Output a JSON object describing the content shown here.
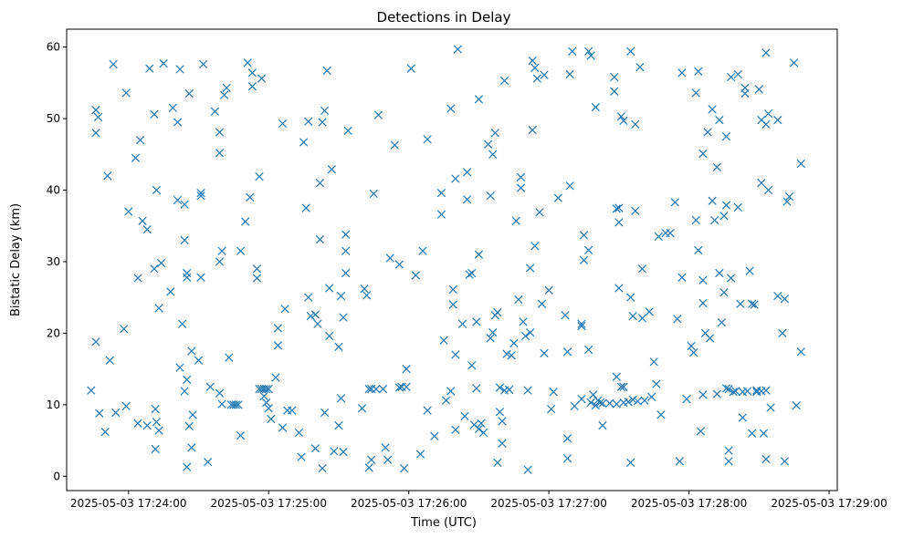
{
  "chart_data": {
    "type": "scatter",
    "title": "Detections in Delay",
    "xlabel": "Time (UTC)",
    "ylabel": "Bistatic Delay (km)",
    "marker": "x",
    "color": "#1f77b4",
    "x_unit": "seconds after 17:24:00",
    "xlim": [
      -26.5,
      303.5
    ],
    "ylim": [
      -2.0,
      62.5
    ],
    "xticks": [
      {
        "value": 0,
        "label": "2025-05-03 17:24:00"
      },
      {
        "value": 60,
        "label": "2025-05-03 17:25:00"
      },
      {
        "value": 120,
        "label": "2025-05-03 17:26:00"
      },
      {
        "value": 180,
        "label": "2025-05-03 17:27:00"
      },
      {
        "value": 240,
        "label": "2025-05-03 17:28:00"
      },
      {
        "value": 300,
        "label": "2025-05-03 17:29:00"
      }
    ],
    "yticks": [
      {
        "value": 0,
        "label": "0"
      },
      {
        "value": 10,
        "label": "10"
      },
      {
        "value": 20,
        "label": "20"
      },
      {
        "value": 30,
        "label": "30"
      },
      {
        "value": 40,
        "label": "40"
      },
      {
        "value": 50,
        "label": "50"
      },
      {
        "value": 60,
        "label": "60"
      }
    ],
    "points": [
      [
        -16,
        12
      ],
      [
        -14,
        51.2
      ],
      [
        -14,
        48
      ],
      [
        -13,
        50.2
      ],
      [
        -14,
        18.8
      ],
      [
        -12.5,
        8.8
      ],
      [
        -10,
        6.2
      ],
      [
        -9,
        42
      ],
      [
        -8,
        16.2
      ],
      [
        -6.5,
        57.6
      ],
      [
        -5.5,
        8.9
      ],
      [
        -2,
        20.6
      ],
      [
        -1,
        53.6
      ],
      [
        -1,
        9.8
      ],
      [
        0,
        37
      ],
      [
        3,
        44.5
      ],
      [
        4,
        27.7
      ],
      [
        4,
        7.4
      ],
      [
        5,
        47
      ],
      [
        6,
        35.7
      ],
      [
        8,
        34.5
      ],
      [
        8,
        7.1
      ],
      [
        9,
        57
      ],
      [
        11,
        50.6
      ],
      [
        11,
        29
      ],
      [
        11.5,
        9.4
      ],
      [
        11.5,
        3.8
      ],
      [
        12,
        40
      ],
      [
        12,
        7.6
      ],
      [
        13,
        6.4
      ],
      [
        13,
        23.5
      ],
      [
        14,
        29.8
      ],
      [
        15,
        57.7
      ],
      [
        18,
        25.8
      ],
      [
        19,
        51.5
      ],
      [
        21,
        49.5
      ],
      [
        21,
        38.6
      ],
      [
        22,
        56.9
      ],
      [
        22,
        15.2
      ],
      [
        23,
        21.3
      ],
      [
        24,
        33
      ],
      [
        24,
        38
      ],
      [
        24,
        11.9
      ],
      [
        25,
        13.5
      ],
      [
        25,
        28.4
      ],
      [
        25,
        27.8
      ],
      [
        25,
        1.3
      ],
      [
        26,
        53.5
      ],
      [
        26,
        7
      ],
      [
        27,
        17.5
      ],
      [
        27,
        4
      ],
      [
        27.5,
        8.6
      ],
      [
        30,
        16.2
      ],
      [
        31,
        39.6
      ],
      [
        31,
        39.2
      ],
      [
        31,
        27.8
      ],
      [
        32,
        57.6
      ],
      [
        34,
        2
      ],
      [
        35,
        12.5
      ],
      [
        37,
        51
      ],
      [
        39,
        48.1
      ],
      [
        39,
        45.2
      ],
      [
        39,
        30
      ],
      [
        39,
        11.6
      ],
      [
        40,
        31.5
      ],
      [
        40,
        10.1
      ],
      [
        41,
        53.3
      ],
      [
        42,
        54.3
      ],
      [
        43,
        16.6
      ],
      [
        44,
        10
      ],
      [
        45,
        10
      ],
      [
        46,
        10
      ],
      [
        47,
        10
      ],
      [
        48,
        5.7
      ],
      [
        48,
        31.5
      ],
      [
        50,
        35.6
      ],
      [
        51,
        57.8
      ],
      [
        52,
        39
      ],
      [
        53,
        56.4
      ],
      [
        53,
        54.5
      ],
      [
        55,
        29
      ],
      [
        55,
        27.7
      ],
      [
        56,
        41.9
      ],
      [
        56,
        12.2
      ],
      [
        57,
        12.2
      ],
      [
        58,
        12.2
      ],
      [
        59,
        12.2
      ],
      [
        60,
        12.2
      ],
      [
        57,
        55.6
      ],
      [
        58,
        11.2
      ],
      [
        59,
        10.3
      ],
      [
        60,
        9.5
      ],
      [
        61,
        8
      ],
      [
        63,
        13.8
      ],
      [
        64,
        20.7
      ],
      [
        64,
        18.3
      ],
      [
        66,
        49.3
      ],
      [
        66,
        6.8
      ],
      [
        67,
        23.4
      ],
      [
        68,
        9.2
      ],
      [
        70,
        9.2
      ],
      [
        73,
        6.1
      ],
      [
        74,
        2.7
      ],
      [
        75,
        46.7
      ],
      [
        76,
        37.5
      ],
      [
        77,
        49.6
      ],
      [
        77,
        25
      ],
      [
        78,
        22.4
      ],
      [
        80,
        22.6
      ],
      [
        80,
        3.9
      ],
      [
        81,
        21.3
      ],
      [
        82,
        41
      ],
      [
        82,
        33.1
      ],
      [
        83,
        49.5
      ],
      [
        83,
        1.1
      ],
      [
        84,
        51.1
      ],
      [
        84,
        8.9
      ],
      [
        85,
        56.7
      ],
      [
        86,
        26.3
      ],
      [
        86,
        19.6
      ],
      [
        87,
        42.9
      ],
      [
        88,
        3.5
      ],
      [
        90,
        18.1
      ],
      [
        90,
        7.1
      ],
      [
        91,
        25.2
      ],
      [
        91,
        10.9
      ],
      [
        92,
        22.2
      ],
      [
        92,
        3.4
      ],
      [
        93,
        33.8
      ],
      [
        93,
        31.5
      ],
      [
        93,
        28.4
      ],
      [
        94,
        48.3
      ],
      [
        100,
        9.5
      ],
      [
        101,
        26.2
      ],
      [
        102,
        25.3
      ],
      [
        103,
        12.2
      ],
      [
        103,
        1.2
      ],
      [
        104,
        2.3
      ],
      [
        104,
        12.2
      ],
      [
        105,
        39.5
      ],
      [
        106,
        12.2
      ],
      [
        107,
        50.5
      ],
      [
        109,
        12.2
      ],
      [
        110,
        4
      ],
      [
        111,
        2.3
      ],
      [
        112,
        30.5
      ],
      [
        114,
        46.3
      ],
      [
        116,
        12.4
      ],
      [
        116,
        29.6
      ],
      [
        117,
        12.5
      ],
      [
        118,
        1.1
      ],
      [
        119,
        12.5
      ],
      [
        119,
        15
      ],
      [
        121,
        57
      ],
      [
        123,
        28.1
      ],
      [
        125,
        3.1
      ],
      [
        126,
        31.5
      ],
      [
        128,
        47.1
      ],
      [
        128,
        9.2
      ],
      [
        131,
        5.6
      ],
      [
        134,
        39.6
      ],
      [
        134,
        36.6
      ],
      [
        135,
        19
      ],
      [
        136,
        10.6
      ],
      [
        138,
        11.9
      ],
      [
        138,
        51.4
      ],
      [
        139,
        26.1
      ],
      [
        139,
        24
      ],
      [
        140,
        41.6
      ],
      [
        140,
        6.5
      ],
      [
        140,
        17
      ],
      [
        141,
        59.7
      ],
      [
        143,
        21.3
      ],
      [
        144,
        8.4
      ],
      [
        145,
        42.5
      ],
      [
        145,
        38.7
      ],
      [
        146,
        28.2
      ],
      [
        147,
        15.5
      ],
      [
        147,
        28.4
      ],
      [
        148,
        7.2
      ],
      [
        149,
        12.3
      ],
      [
        149,
        21.6
      ],
      [
        150,
        6.6
      ],
      [
        150,
        31
      ],
      [
        150,
        52.7
      ],
      [
        151,
        7.4
      ],
      [
        152,
        6.1
      ],
      [
        154,
        46.4
      ],
      [
        155,
        39.2
      ],
      [
        155,
        19.3
      ],
      [
        156,
        20.1
      ],
      [
        156,
        45
      ],
      [
        157,
        48
      ],
      [
        157,
        22.5
      ],
      [
        158,
        22.9
      ],
      [
        158,
        1.9
      ],
      [
        159,
        9
      ],
      [
        159,
        12.4
      ],
      [
        160,
        7.7
      ],
      [
        160,
        4.6
      ],
      [
        161,
        12
      ],
      [
        161,
        55.3
      ],
      [
        162,
        17.1
      ],
      [
        163,
        12.1
      ],
      [
        164,
        16.9
      ],
      [
        165,
        18.6
      ],
      [
        166,
        35.7
      ],
      [
        167,
        24.7
      ],
      [
        168,
        40.3
      ],
      [
        168,
        41.8
      ],
      [
        169,
        21.6
      ],
      [
        170,
        19.6
      ],
      [
        171,
        12
      ],
      [
        171,
        0.9
      ],
      [
        172,
        29.1
      ],
      [
        172,
        20.1
      ],
      [
        173,
        48.4
      ],
      [
        173,
        58.1
      ],
      [
        174,
        57.1
      ],
      [
        174,
        32.2
      ],
      [
        175,
        55.6
      ],
      [
        176,
        36.9
      ],
      [
        177,
        24.1
      ],
      [
        178,
        56.1
      ],
      [
        178,
        17.2
      ],
      [
        180,
        26
      ],
      [
        181,
        9.4
      ],
      [
        182,
        11.8
      ],
      [
        184,
        38.9
      ],
      [
        187,
        22.5
      ],
      [
        188,
        2.5
      ],
      [
        188,
        17.4
      ],
      [
        188,
        5.3
      ],
      [
        189,
        56.2
      ],
      [
        189,
        40.6
      ],
      [
        190,
        59.4
      ],
      [
        191,
        9.8
      ],
      [
        194,
        21.3
      ],
      [
        194,
        21
      ],
      [
        194,
        10.8
      ],
      [
        195,
        33.7
      ],
      [
        195,
        30.2
      ],
      [
        197,
        17.7
      ],
      [
        197,
        31.6
      ],
      [
        197,
        59.4
      ],
      [
        198,
        58.8
      ],
      [
        198,
        10.3
      ],
      [
        199,
        11.4
      ],
      [
        200,
        9.9
      ],
      [
        200,
        51.6
      ],
      [
        201,
        10.6
      ],
      [
        202,
        10.3
      ],
      [
        203,
        10.2
      ],
      [
        203,
        7.1
      ],
      [
        206,
        10.2
      ],
      [
        208,
        55.8
      ],
      [
        208,
        53.8
      ],
      [
        209,
        10.1
      ],
      [
        209,
        13.9
      ],
      [
        209,
        37.4
      ],
      [
        210,
        26.3
      ],
      [
        210,
        37.5
      ],
      [
        210,
        35.5
      ],
      [
        211,
        12.5
      ],
      [
        211,
        50.3
      ],
      [
        212,
        49.7
      ],
      [
        212,
        10.3
      ],
      [
        212,
        12.5
      ],
      [
        214,
        10.4
      ],
      [
        215,
        25
      ],
      [
        215,
        59.4
      ],
      [
        215,
        1.9
      ],
      [
        216,
        10.7
      ],
      [
        216,
        22.4
      ],
      [
        217,
        49.2
      ],
      [
        217,
        37.1
      ],
      [
        218,
        10.5
      ],
      [
        219,
        57.2
      ],
      [
        220,
        22.1
      ],
      [
        220,
        29
      ],
      [
        221,
        10.6
      ],
      [
        223,
        23
      ],
      [
        224,
        11.1
      ],
      [
        225,
        16
      ],
      [
        226,
        12.9
      ],
      [
        227,
        33.5
      ],
      [
        228,
        8.6
      ],
      [
        230,
        34
      ],
      [
        232,
        34
      ],
      [
        234,
        38.3
      ],
      [
        235,
        22
      ],
      [
        236,
        2.1
      ],
      [
        237,
        27.8
      ],
      [
        237,
        56.4
      ],
      [
        239,
        10.8
      ],
      [
        241,
        18.2
      ],
      [
        242,
        17.3
      ],
      [
        243,
        35.8
      ],
      [
        243,
        53.6
      ],
      [
        244,
        31.6
      ],
      [
        244,
        56.6
      ],
      [
        245,
        6.3
      ],
      [
        246,
        45.1
      ],
      [
        246,
        27.4
      ],
      [
        246,
        24.2
      ],
      [
        246,
        11.4
      ],
      [
        247,
        20
      ],
      [
        248,
        48.1
      ],
      [
        249,
        19.3
      ],
      [
        250,
        38.5
      ],
      [
        250,
        51.3
      ],
      [
        251,
        35.8
      ],
      [
        252,
        11.5
      ],
      [
        252,
        43.2
      ],
      [
        253,
        49.8
      ],
      [
        253,
        28.4
      ],
      [
        254,
        21.5
      ],
      [
        255,
        36.4
      ],
      [
        255,
        25.7
      ],
      [
        256,
        47.5
      ],
      [
        256,
        37.9
      ],
      [
        256,
        12.3
      ],
      [
        257,
        3.6
      ],
      [
        257,
        2.1
      ],
      [
        257,
        12.2
      ],
      [
        258,
        27.7
      ],
      [
        258,
        55.8
      ],
      [
        259,
        11.8
      ],
      [
        260,
        11.9
      ],
      [
        261,
        37.6
      ],
      [
        261,
        56.2
      ],
      [
        263,
        11.8
      ],
      [
        262,
        24.1
      ],
      [
        263,
        8.2
      ],
      [
        264,
        54.3
      ],
      [
        264,
        53.5
      ],
      [
        265,
        11.9
      ],
      [
        266,
        28.7
      ],
      [
        267,
        6
      ],
      [
        267,
        24.1
      ],
      [
        268,
        24
      ],
      [
        269,
        12
      ],
      [
        269,
        11.8
      ],
      [
        270,
        54.1
      ],
      [
        271,
        49.8
      ],
      [
        271,
        41
      ],
      [
        271,
        11.9
      ],
      [
        272,
        6
      ],
      [
        273,
        12
      ],
      [
        273,
        2.4
      ],
      [
        273,
        49.2
      ],
      [
        273,
        59.2
      ],
      [
        274,
        40
      ],
      [
        274,
        50.7
      ],
      [
        275,
        9.6
      ],
      [
        278,
        49.8
      ],
      [
        278,
        25.2
      ],
      [
        280,
        20
      ],
      [
        281,
        24.8
      ],
      [
        281,
        2.1
      ],
      [
        282,
        38.4
      ],
      [
        283,
        39.1
      ],
      [
        285,
        57.8
      ],
      [
        286,
        9.9
      ],
      [
        288,
        17.4
      ],
      [
        288,
        43.7
      ]
    ]
  }
}
